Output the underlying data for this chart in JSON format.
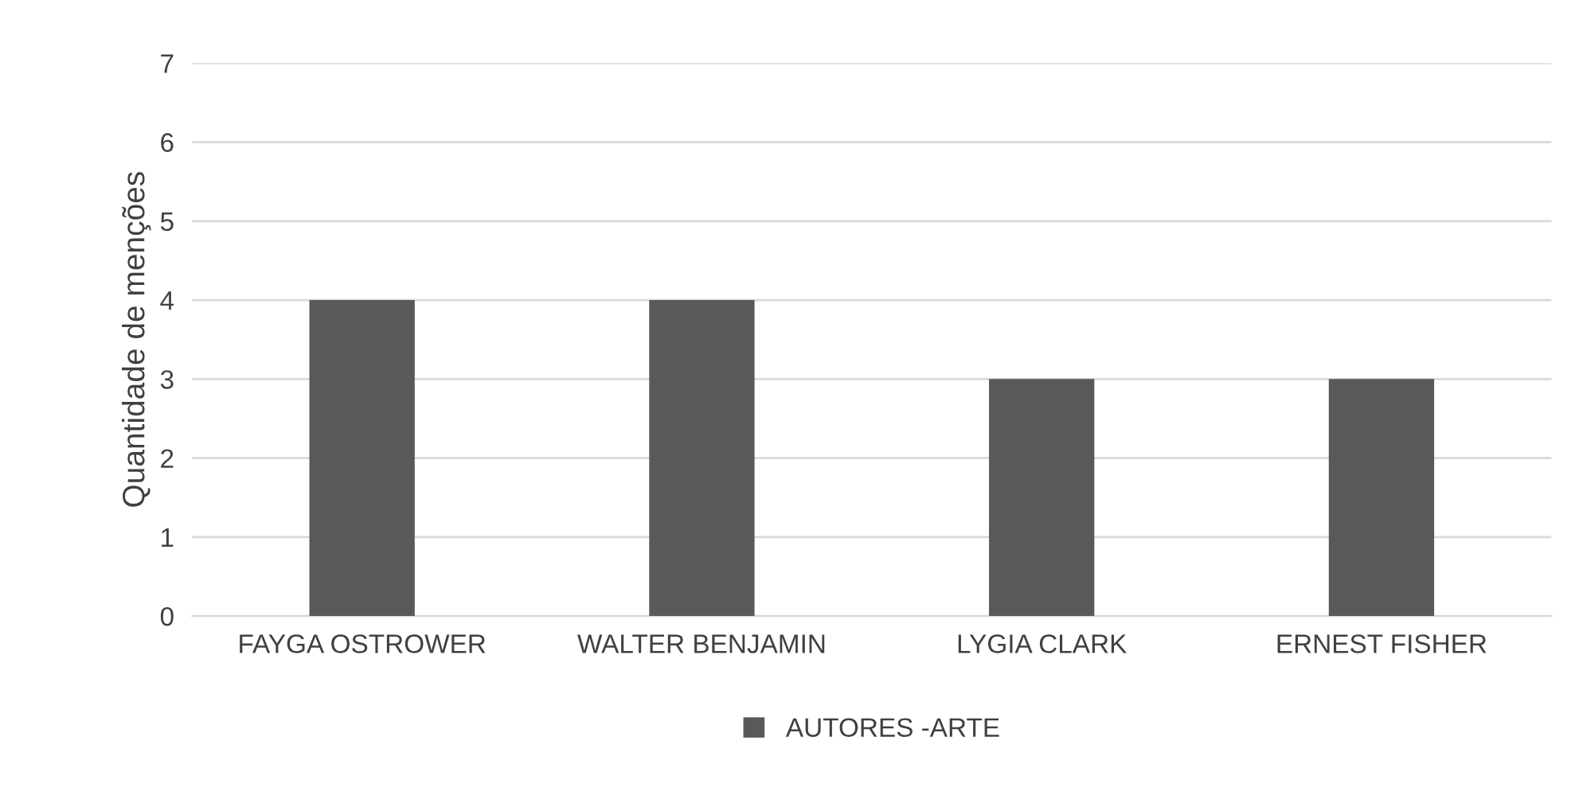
{
  "chart_data": {
    "type": "bar",
    "ylabel": "Quantidade de menções",
    "categories": [
      "FAYGA OSTROWER",
      "WALTER BENJAMIN",
      "LYGIA CLARK",
      "ERNEST FISHER"
    ],
    "series": [
      {
        "name": "AUTORES -ARTE",
        "color": "#595959",
        "values": [
          4,
          4,
          3,
          3
        ]
      }
    ],
    "ylim": [
      0,
      7
    ],
    "yticks": [
      0,
      1,
      2,
      3,
      4,
      5,
      6,
      7
    ],
    "grid": "y",
    "legend": "bottom"
  }
}
